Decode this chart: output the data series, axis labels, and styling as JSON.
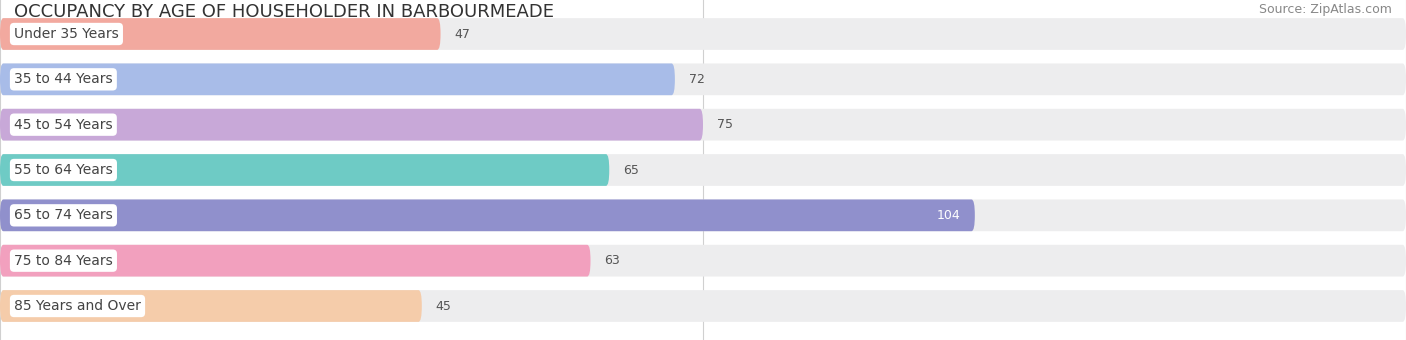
{
  "title": "OCCUPANCY BY AGE OF HOUSEHOLDER IN BARBOURMEADE",
  "source": "Source: ZipAtlas.com",
  "categories": [
    "Under 35 Years",
    "35 to 44 Years",
    "45 to 54 Years",
    "55 to 64 Years",
    "65 to 74 Years",
    "75 to 84 Years",
    "85 Years and Over"
  ],
  "values": [
    47,
    72,
    75,
    65,
    104,
    63,
    45
  ],
  "bar_colors": [
    "#f2a99f",
    "#a8bce8",
    "#c8a8d8",
    "#6ecbc5",
    "#9090cc",
    "#f2a0be",
    "#f5ccaa"
  ],
  "bar_bg_color": "#ededee",
  "xlim": [
    0,
    150
  ],
  "xticks": [
    0,
    75,
    150
  ],
  "title_fontsize": 13,
  "source_fontsize": 9,
  "label_fontsize": 10,
  "value_fontsize": 9,
  "background_color": "#ffffff",
  "bar_height": 0.7,
  "fig_width": 14.06,
  "fig_height": 3.4,
  "dpi": 100
}
